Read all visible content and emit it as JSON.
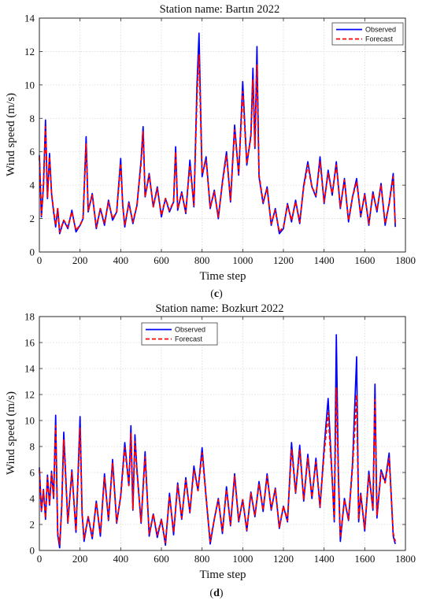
{
  "chart_data": [
    {
      "type": "line",
      "title": "Station name: Bartın 2022",
      "xlabel": "Time step",
      "ylabel": "Wind speed (m/s)",
      "panel_label": "c",
      "xlim": [
        0,
        1800
      ],
      "ylim": [
        0,
        14
      ],
      "xticks": [
        0,
        200,
        400,
        600,
        800,
        1000,
        1200,
        1400,
        1600,
        1800
      ],
      "yticks": [
        0,
        2,
        4,
        6,
        8,
        10,
        12,
        14
      ],
      "grid": true,
      "legend_position": "top-right",
      "series": [
        {
          "name": "Observed",
          "color": "#0000ff",
          "style": "solid",
          "x": [
            0,
            10,
            20,
            30,
            40,
            50,
            60,
            70,
            80,
            90,
            100,
            120,
            140,
            160,
            180,
            200,
            215,
            230,
            240,
            260,
            280,
            300,
            320,
            340,
            360,
            380,
            400,
            410,
            420,
            440,
            460,
            480,
            500,
            510,
            520,
            540,
            560,
            580,
            600,
            620,
            640,
            660,
            670,
            680,
            700,
            720,
            740,
            760,
            775,
            785,
            800,
            820,
            840,
            860,
            880,
            900,
            920,
            940,
            960,
            980,
            1000,
            1020,
            1040,
            1050,
            1060,
            1070,
            1080,
            1100,
            1120,
            1140,
            1160,
            1180,
            1200,
            1220,
            1240,
            1260,
            1280,
            1300,
            1320,
            1340,
            1360,
            1380,
            1400,
            1420,
            1440,
            1460,
            1480,
            1500,
            1520,
            1540,
            1560,
            1580,
            1600,
            1620,
            1640,
            1660,
            1680,
            1700,
            1720,
            1740,
            1750
          ],
          "values": [
            5.8,
            2.1,
            4.0,
            7.9,
            3.2,
            5.9,
            3.5,
            2.4,
            1.5,
            2.6,
            1.1,
            1.9,
            1.4,
            2.5,
            1.2,
            1.6,
            2.0,
            6.9,
            2.4,
            3.5,
            1.4,
            2.6,
            1.6,
            3.1,
            1.9,
            2.4,
            5.6,
            2.8,
            1.5,
            3.0,
            1.7,
            2.8,
            5.5,
            7.5,
            3.3,
            4.7,
            2.7,
            3.9,
            2.1,
            3.2,
            2.4,
            3.0,
            6.3,
            2.5,
            3.6,
            2.3,
            5.5,
            2.7,
            10.0,
            13.1,
            4.5,
            5.7,
            2.6,
            3.7,
            2.0,
            4.2,
            6.0,
            3.0,
            7.6,
            4.6,
            10.2,
            5.2,
            7.0,
            11.0,
            6.2,
            12.3,
            4.5,
            2.9,
            3.9,
            1.6,
            2.6,
            1.1,
            1.4,
            2.9,
            1.8,
            3.1,
            1.7,
            4.0,
            5.4,
            3.9,
            3.3,
            5.7,
            2.9,
            4.9,
            3.4,
            5.4,
            2.6,
            4.4,
            1.8,
            3.3,
            4.4,
            2.1,
            3.5,
            1.6,
            3.6,
            2.4,
            4.1,
            1.6,
            2.9,
            4.7,
            1.5
          ]
        },
        {
          "name": "Forecast",
          "color": "#ff0000",
          "style": "dashed",
          "x": [
            0,
            10,
            20,
            30,
            40,
            50,
            60,
            70,
            80,
            90,
            100,
            120,
            140,
            160,
            180,
            200,
            215,
            230,
            240,
            260,
            280,
            300,
            320,
            340,
            360,
            380,
            400,
            410,
            420,
            440,
            460,
            480,
            500,
            510,
            520,
            540,
            560,
            580,
            600,
            620,
            640,
            660,
            670,
            680,
            700,
            720,
            740,
            760,
            775,
            785,
            800,
            820,
            840,
            860,
            880,
            900,
            920,
            940,
            960,
            980,
            1000,
            1020,
            1040,
            1050,
            1060,
            1070,
            1080,
            1100,
            1120,
            1140,
            1160,
            1180,
            1200,
            1220,
            1240,
            1260,
            1280,
            1300,
            1320,
            1340,
            1360,
            1380,
            1400,
            1420,
            1440,
            1460,
            1480,
            1500,
            1520,
            1540,
            1560,
            1580,
            1600,
            1620,
            1640,
            1660,
            1680,
            1700,
            1720,
            1740,
            1750
          ],
          "values": [
            5.7,
            2.2,
            3.9,
            7.5,
            3.3,
            5.7,
            3.5,
            2.5,
            1.6,
            2.6,
            1.2,
            1.9,
            1.5,
            2.4,
            1.3,
            1.6,
            2.0,
            6.5,
            2.5,
            3.4,
            1.5,
            2.6,
            1.7,
            3.0,
            2.0,
            2.4,
            5.3,
            2.8,
            1.6,
            2.9,
            1.8,
            2.8,
            5.3,
            7.2,
            3.3,
            4.6,
            2.7,
            3.8,
            2.2,
            3.2,
            2.5,
            3.0,
            6.0,
            2.6,
            3.5,
            2.4,
            5.2,
            2.8,
            9.3,
            11.8,
            4.7,
            5.5,
            2.7,
            3.6,
            2.1,
            4.1,
            5.8,
            3.1,
            7.3,
            4.7,
            9.6,
            5.3,
            6.9,
            10.3,
            6.3,
            11.2,
            4.6,
            3.0,
            3.8,
            1.7,
            2.5,
            1.2,
            1.5,
            2.8,
            1.9,
            3.0,
            1.8,
            3.9,
            5.2,
            3.9,
            3.4,
            5.4,
            3.0,
            4.7,
            3.5,
            5.2,
            2.7,
            4.3,
            1.9,
            3.3,
            4.2,
            2.2,
            3.4,
            1.7,
            3.5,
            2.5,
            4.0,
            1.7,
            2.9,
            4.5,
            1.6
          ]
        }
      ]
    },
    {
      "type": "line",
      "title": "Station name: Bozkurt 2022",
      "xlabel": "Time step",
      "ylabel": "Wind speed (m/s)",
      "panel_label": "d",
      "xlim": [
        0,
        1800
      ],
      "ylim": [
        0,
        18
      ],
      "xticks": [
        0,
        200,
        400,
        600,
        800,
        1000,
        1200,
        1400,
        1600,
        1800
      ],
      "yticks": [
        0,
        2,
        4,
        6,
        8,
        10,
        12,
        14,
        16,
        18
      ],
      "grid": true,
      "legend_position": "top-center",
      "series": [
        {
          "name": "Observed",
          "color": "#0000ff",
          "style": "solid",
          "x": [
            0,
            10,
            20,
            30,
            40,
            50,
            60,
            70,
            80,
            90,
            100,
            110,
            120,
            140,
            160,
            180,
            200,
            210,
            220,
            240,
            260,
            280,
            300,
            320,
            340,
            360,
            380,
            400,
            420,
            440,
            450,
            460,
            470,
            480,
            500,
            520,
            540,
            560,
            580,
            600,
            620,
            640,
            660,
            680,
            700,
            720,
            740,
            760,
            780,
            800,
            820,
            840,
            860,
            880,
            900,
            920,
            940,
            960,
            980,
            1000,
            1020,
            1040,
            1060,
            1080,
            1100,
            1120,
            1140,
            1160,
            1180,
            1200,
            1220,
            1240,
            1260,
            1280,
            1300,
            1320,
            1340,
            1360,
            1380,
            1400,
            1420,
            1440,
            1450,
            1460,
            1470,
            1480,
            1500,
            1520,
            1540,
            1560,
            1570,
            1580,
            1600,
            1620,
            1640,
            1650,
            1660,
            1680,
            1700,
            1720,
            1740,
            1750
          ],
          "values": [
            6.4,
            3.0,
            4.7,
            2.4,
            5.8,
            3.5,
            6.1,
            4.0,
            10.4,
            1.2,
            0.2,
            3.4,
            9.1,
            2.1,
            6.2,
            1.4,
            10.3,
            2.8,
            0.7,
            2.6,
            0.9,
            3.8,
            1.1,
            5.9,
            2.3,
            7.0,
            2.1,
            4.2,
            8.3,
            5.0,
            9.6,
            3.1,
            8.9,
            6.2,
            2.1,
            7.6,
            1.1,
            2.8,
            1.0,
            2.4,
            0.4,
            4.4,
            1.2,
            5.2,
            2.4,
            5.6,
            2.9,
            6.5,
            4.6,
            7.9,
            4.1,
            0.5,
            2.4,
            4.0,
            1.3,
            4.9,
            1.9,
            5.9,
            2.2,
            3.9,
            1.5,
            4.5,
            2.6,
            5.3,
            3.0,
            5.9,
            3.1,
            4.8,
            1.7,
            3.4,
            2.2,
            8.3,
            4.4,
            8.1,
            3.8,
            7.4,
            4.0,
            7.1,
            3.3,
            7.9,
            11.7,
            5.5,
            2.2,
            16.6,
            6.0,
            0.7,
            4.0,
            2.3,
            6.7,
            14.9,
            2.2,
            4.4,
            1.5,
            6.1,
            3.1,
            12.8,
            2.5,
            6.2,
            5.3,
            7.5,
            1.1,
            0.5
          ]
        },
        {
          "name": "Forecast",
          "color": "#ff0000",
          "style": "dashed",
          "x": [
            0,
            10,
            20,
            30,
            40,
            50,
            60,
            70,
            80,
            90,
            100,
            110,
            120,
            140,
            160,
            180,
            200,
            210,
            220,
            240,
            260,
            280,
            300,
            320,
            340,
            360,
            380,
            400,
            420,
            440,
            450,
            460,
            470,
            480,
            500,
            520,
            540,
            560,
            580,
            600,
            620,
            640,
            660,
            680,
            700,
            720,
            740,
            760,
            780,
            800,
            820,
            840,
            860,
            880,
            900,
            920,
            940,
            960,
            980,
            1000,
            1020,
            1040,
            1060,
            1080,
            1100,
            1120,
            1140,
            1160,
            1180,
            1200,
            1220,
            1240,
            1260,
            1280,
            1300,
            1320,
            1340,
            1360,
            1380,
            1400,
            1420,
            1440,
            1450,
            1460,
            1470,
            1480,
            1500,
            1520,
            1540,
            1560,
            1570,
            1580,
            1600,
            1620,
            1640,
            1650,
            1660,
            1680,
            1700,
            1720,
            1740,
            1750
          ],
          "values": [
            6.2,
            3.1,
            4.6,
            2.5,
            5.6,
            3.6,
            5.9,
            4.1,
            9.6,
            1.4,
            0.5,
            3.3,
            8.5,
            2.2,
            6.0,
            1.5,
            9.4,
            2.9,
            0.9,
            2.6,
            1.1,
            3.7,
            1.3,
            5.6,
            2.4,
            6.7,
            2.2,
            4.1,
            7.9,
            5.0,
            9.0,
            3.2,
            8.4,
            6.0,
            2.2,
            7.2,
            1.3,
            2.8,
            1.2,
            2.4,
            0.6,
            4.2,
            1.4,
            5.0,
            2.5,
            5.4,
            3.0,
            6.2,
            4.6,
            7.5,
            4.1,
            0.7,
            2.4,
            3.9,
            1.5,
            4.7,
            2.0,
            5.7,
            2.3,
            3.9,
            1.6,
            4.4,
            2.7,
            5.1,
            3.1,
            5.7,
            3.2,
            4.7,
            1.8,
            3.4,
            2.3,
            7.8,
            4.5,
            7.7,
            3.9,
            7.1,
            4.1,
            6.8,
            3.4,
            7.5,
            10.6,
            5.4,
            2.4,
            12.5,
            5.8,
            1.0,
            3.9,
            2.4,
            6.4,
            12.0,
            2.4,
            4.3,
            1.7,
            5.8,
            3.2,
            11.6,
            2.7,
            6.0,
            5.2,
            7.1,
            1.3,
            0.7
          ]
        }
      ]
    }
  ]
}
